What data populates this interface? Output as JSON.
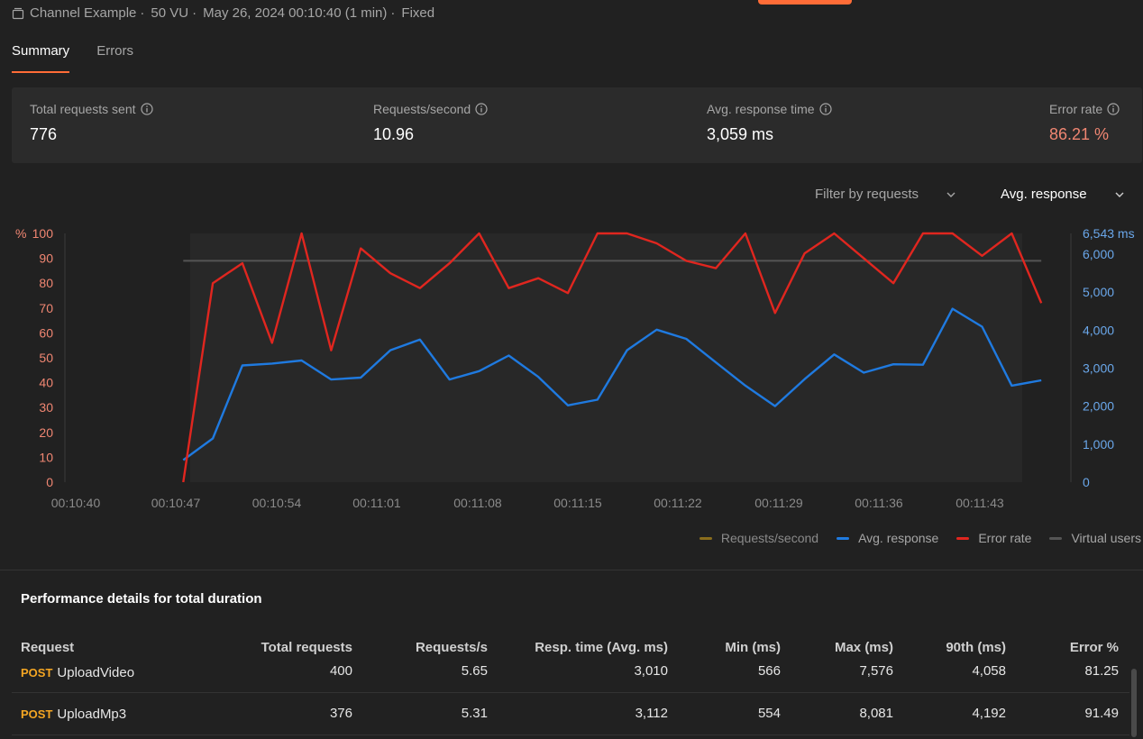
{
  "run": {
    "collection": "Channel Example",
    "vus": "50 VU",
    "date": "May 26, 2024 00:10:40 (1 min)",
    "profile": "Fixed",
    "separator": "·"
  },
  "tabs": [
    {
      "label": "Summary",
      "active": true
    },
    {
      "label": "Errors",
      "active": false
    }
  ],
  "stats": [
    {
      "label": "Total requests sent",
      "value": "776"
    },
    {
      "label": "Requests/second",
      "value": "10.96"
    },
    {
      "label": "Avg. response time",
      "value": "3,059 ms"
    },
    {
      "label": "Error rate",
      "value": "86.21 %"
    }
  ],
  "filters": {
    "requests": "Filter by requests",
    "metric": "Avg. response"
  },
  "colors": {
    "accent": "#ff6c37",
    "avg_response": "#1f7ae0",
    "error_rate": "#e0261f",
    "virtual_users": "#555555",
    "requests_second": "#8a6d1c",
    "error_text": "#f08672",
    "method": "#f5a623"
  },
  "chart_data": {
    "type": "line",
    "x_ticks": [
      "00:10:40",
      "00:10:47",
      "00:10:54",
      "00:11:01",
      "00:11:08",
      "00:11:15",
      "00:11:22",
      "00:11:29",
      "00:11:36",
      "00:11:43"
    ],
    "left_axis": {
      "unit": "%",
      "ticks": [
        "0",
        "10",
        "20",
        "30",
        "40",
        "50",
        "60",
        "70",
        "80",
        "90",
        "100"
      ],
      "range": [
        0,
        100
      ]
    },
    "right_axis": {
      "unit": "ms",
      "top_label": "6,543",
      "ticks": [
        "0",
        "1,000",
        "2,000",
        "3,000",
        "4,000",
        "5,000",
        "6,000"
      ],
      "range": [
        0,
        6543
      ]
    },
    "x_range_seconds": [
      0,
      68
    ],
    "series": [
      {
        "name": "Error rate",
        "axis": "left",
        "x_seconds": [
          8,
          10,
          12,
          14,
          16,
          18,
          20,
          22,
          24,
          26,
          28,
          30,
          32,
          34,
          36,
          38,
          40,
          42,
          44,
          46,
          48,
          50,
          52,
          54,
          56,
          58,
          60,
          62,
          64,
          66
        ],
        "values": [
          0,
          80,
          88,
          56,
          100,
          53,
          94,
          84,
          78,
          88,
          100,
          78,
          82,
          76,
          100,
          100,
          96,
          89,
          86,
          100,
          68,
          92,
          100,
          90,
          80,
          100,
          100,
          91,
          100,
          72
        ]
      },
      {
        "name": "Avg. response",
        "axis": "right",
        "x_seconds": [
          8,
          10,
          12,
          14,
          16,
          18,
          20,
          22,
          24,
          26,
          28,
          30,
          32,
          34,
          36,
          38,
          40,
          42,
          44,
          46,
          48,
          50,
          52,
          54,
          56,
          58,
          60,
          62,
          64,
          66
        ],
        "values": [
          580,
          1150,
          3070,
          3120,
          3200,
          2700,
          2750,
          3470,
          3750,
          2700,
          2920,
          3330,
          2770,
          2020,
          2170,
          3470,
          4010,
          3770,
          3150,
          2540,
          2000,
          2710,
          3360,
          2880,
          3100,
          3090,
          4560,
          4090,
          2540,
          2680
        ]
      },
      {
        "name": "Virtual users",
        "axis": "left",
        "x_seconds": [
          8,
          66
        ],
        "values": [
          89,
          89
        ]
      }
    ],
    "legend": [
      "Requests/second",
      "Avg. response",
      "Error rate",
      "Virtual users"
    ],
    "legend_placement": "bottom-right",
    "grid": false
  },
  "performance": {
    "title": "Performance details for total duration",
    "headers": [
      "Request",
      "Total requests",
      "Requests/s",
      "Resp. time (Avg. ms)",
      "Min (ms)",
      "Max (ms)",
      "90th (ms)",
      "Error %"
    ],
    "rows": [
      {
        "method": "POST",
        "name": "UploadVideo",
        "total": "400",
        "rps": "5.65",
        "avg": "3,010",
        "min": "566",
        "max": "7,576",
        "p90": "4,058",
        "error": "81.25"
      },
      {
        "method": "POST",
        "name": "UploadMp3",
        "total": "376",
        "rps": "5.31",
        "avg": "3,112",
        "min": "554",
        "max": "8,081",
        "p90": "4,192",
        "error": "91.49"
      }
    ]
  }
}
